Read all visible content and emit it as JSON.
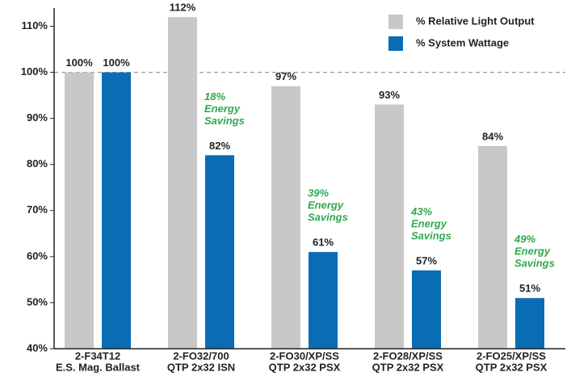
{
  "chart_data": {
    "type": "bar",
    "categories": [
      [
        "2-F34T12",
        "E.S. Mag. Ballast"
      ],
      [
        "2-FO32/700",
        "QTP 2x32 ISN"
      ],
      [
        "2-FO30/XP/SS",
        "QTP 2x32 PSX"
      ],
      [
        "2-FO28/XP/SS",
        "QTP 2x32 PSX"
      ],
      [
        "2-FO25/XP/SS",
        "QTP 2x32 PSX"
      ]
    ],
    "series": [
      {
        "name": "% Relative Light Output",
        "color": "#c8c8c8",
        "values": [
          100,
          112,
          97,
          93,
          84
        ],
        "value_labels": [
          "100%",
          "112%",
          "97%",
          "93%",
          "84%"
        ]
      },
      {
        "name": "% System Wattage",
        "color": "#0b6cb6",
        "values": [
          100,
          82,
          61,
          57,
          51
        ],
        "value_labels": [
          "100%",
          "82%",
          "61%",
          "57%",
          "51%"
        ]
      }
    ],
    "annotations": [
      [
        "18%",
        "Energy",
        "Savings"
      ],
      [
        "39%",
        "Energy",
        "Savings"
      ],
      [
        "43%",
        "Energy",
        "Savings"
      ],
      [
        "49%",
        "Energy",
        "Savings"
      ]
    ],
    "reference_line": 100,
    "ylim": [
      40,
      115
    ],
    "yticks": [
      {
        "value": 40,
        "label": "40%"
      },
      {
        "value": 50,
        "label": "50%"
      },
      {
        "value": 60,
        "label": "60%"
      },
      {
        "value": 70,
        "label": "70%"
      },
      {
        "value": 80,
        "label": "80%"
      },
      {
        "value": 90,
        "label": "90%"
      },
      {
        "value": 100,
        "label": "100%"
      },
      {
        "value": 110,
        "label": "110%"
      }
    ],
    "legend": "top-right"
  }
}
